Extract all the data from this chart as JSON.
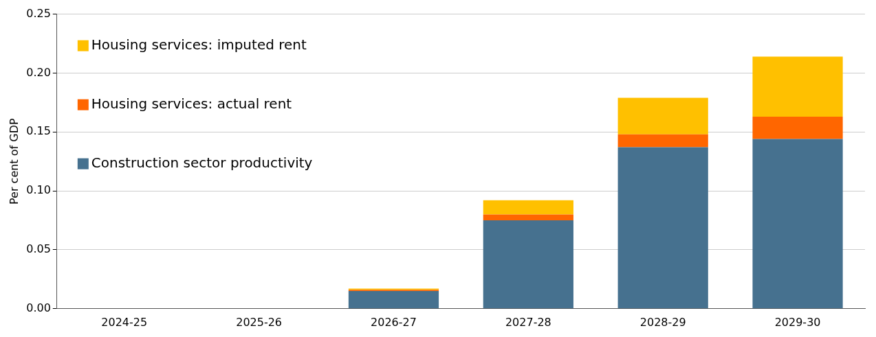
{
  "chart_data": {
    "type": "bar",
    "stacked": true,
    "ylabel": "Per cent of GDP",
    "categories": [
      "2024-25",
      "2025-26",
      "2026-27",
      "2027-28",
      "2028-29",
      "2029-30"
    ],
    "series": [
      {
        "name": "Construction sector productivity",
        "color": "#46718f",
        "values": [
          0,
          0,
          0.015,
          0.075,
          0.137,
          0.144
        ]
      },
      {
        "name": "Housing services: actual rent",
        "color": "#ff6600",
        "values": [
          0,
          0,
          0.001,
          0.005,
          0.011,
          0.019
        ]
      },
      {
        "name": "Housing services: imputed rent",
        "color": "#ffc000",
        "values": [
          0,
          null,
          0.001,
          0.012,
          0.031,
          0.051
        ]
      }
    ],
    "ylim": [
      0,
      0.25
    ],
    "yticks": [
      {
        "value": 0,
        "label": "0.00"
      },
      {
        "value": 0.05,
        "label": "0.05"
      },
      {
        "value": 0.1,
        "label": "0.10"
      },
      {
        "value": 0.15,
        "label": "0.15"
      },
      {
        "value": 0.2,
        "label": "0.20"
      },
      {
        "value": 0.25,
        "label": "0.25"
      }
    ],
    "grid": "y",
    "legend": "top left"
  }
}
